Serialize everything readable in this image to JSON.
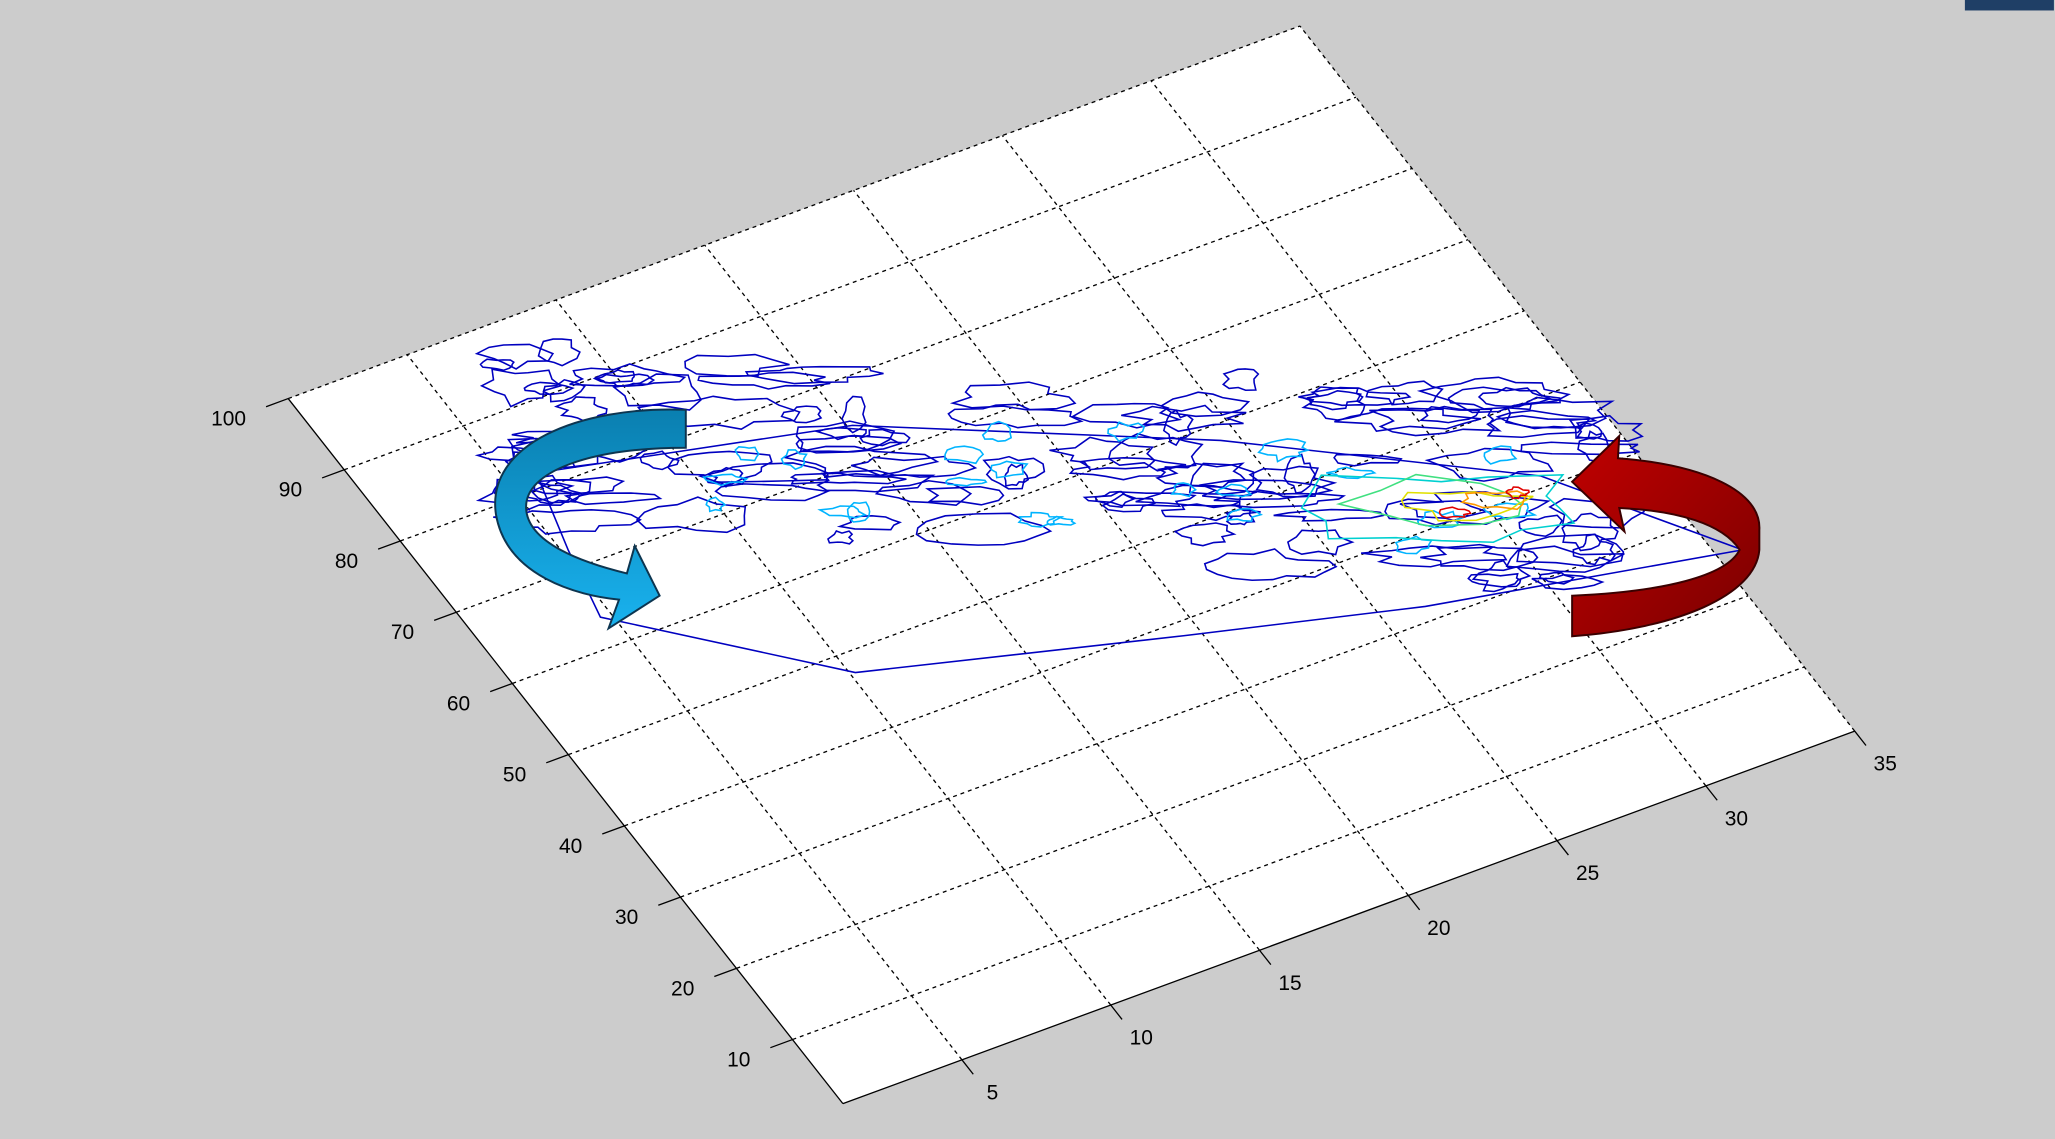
{
  "chart_data": {
    "type": "contour",
    "xlim": [
      1,
      35
    ],
    "ylim": [
      1,
      100
    ],
    "xticks": [
      5,
      10,
      15,
      20,
      25,
      30,
      35
    ],
    "yticks": [
      10,
      20,
      30,
      40,
      50,
      60,
      70,
      80,
      90,
      100
    ],
    "grid": true
  }
}
